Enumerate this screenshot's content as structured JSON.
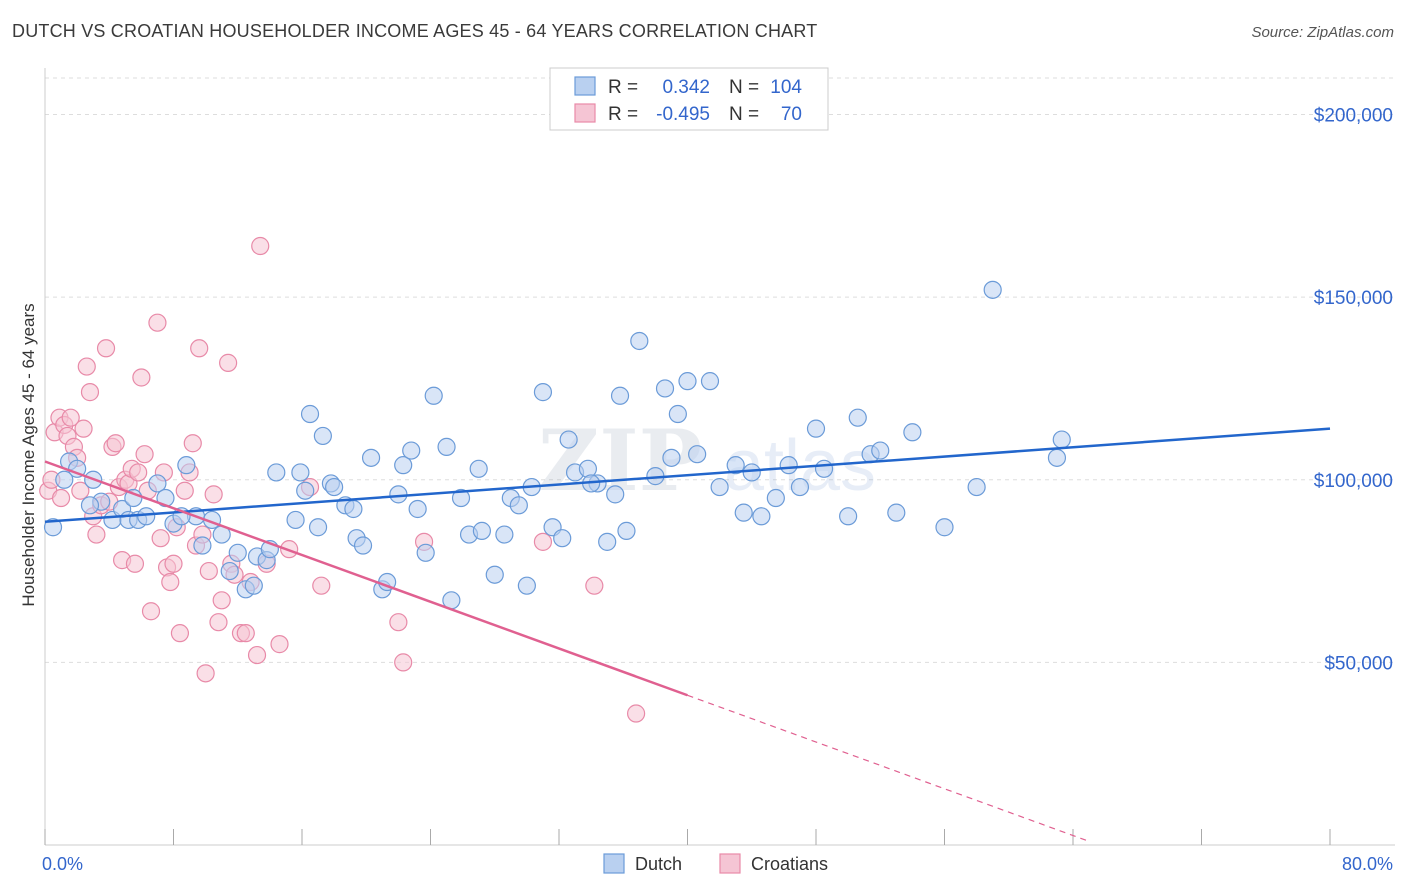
{
  "header": {
    "title": "DUTCH VS CROATIAN HOUSEHOLDER INCOME AGES 45 - 64 YEARS CORRELATION CHART",
    "source": "Source: ZipAtlas.com"
  },
  "legend_stats": {
    "dutch": {
      "r_label": "R =",
      "r_value": "0.342",
      "n_label": "N =",
      "n_value": "104"
    },
    "croatians": {
      "r_label": "R =",
      "r_value": "-0.495",
      "n_label": "N =",
      "n_value": "70"
    }
  },
  "watermark": {
    "zip": "ZIP",
    "atlas": "atlas"
  },
  "colors": {
    "dutch": "#6b9bd8",
    "dutch_fill": "#b9d0f0",
    "dutch_line": "#2266cc",
    "croatians": "#e88aa8",
    "croatians_fill": "#f5c5d4",
    "croatians_line": "#e06090",
    "axis_text": "#3366cc",
    "grid": "#dddddd"
  },
  "chart_data": {
    "type": "scatter",
    "title": "DUTCH VS CROATIAN HOUSEHOLDER INCOME AGES 45 - 64 YEARS CORRELATION CHART",
    "xlabel": "",
    "ylabel": "Householder Income Ages 45 - 64 years",
    "xlim": [
      0,
      80
    ],
    "ylim": [
      0,
      210000
    ],
    "x_tick_labels": [
      "0.0%",
      "80.0%"
    ],
    "y_ticks": [
      50000,
      100000,
      150000,
      200000
    ],
    "y_tick_labels": [
      "$50,000",
      "$100,000",
      "$150,000",
      "$200,000"
    ],
    "grid": true,
    "legend_position": "bottom-center",
    "series": [
      {
        "name": "Dutch",
        "trend": {
          "x": [
            0,
            80
          ],
          "y": [
            88500,
            114000
          ]
        },
        "points": [
          [
            0.5,
            87000
          ],
          [
            1.5,
            105000
          ],
          [
            2.0,
            103000
          ],
          [
            3.0,
            100000
          ],
          [
            3.5,
            94000
          ],
          [
            4.2,
            89000
          ],
          [
            4.8,
            92000
          ],
          [
            5.2,
            89000
          ],
          [
            5.8,
            89000
          ],
          [
            6.3,
            90000
          ],
          [
            7.0,
            99000
          ],
          [
            7.5,
            95000
          ],
          [
            8.0,
            88000
          ],
          [
            8.8,
            104000
          ],
          [
            9.4,
            90000
          ],
          [
            9.8,
            82000
          ],
          [
            10.4,
            89000
          ],
          [
            11.0,
            85000
          ],
          [
            11.5,
            75000
          ],
          [
            12.0,
            80000
          ],
          [
            12.5,
            70000
          ],
          [
            13.2,
            79000
          ],
          [
            13.8,
            78000
          ],
          [
            14.0,
            81000
          ],
          [
            14.4,
            102000
          ],
          [
            15.6,
            89000
          ],
          [
            15.9,
            102000
          ],
          [
            16.2,
            97000
          ],
          [
            16.5,
            118000
          ],
          [
            17.0,
            87000
          ],
          [
            17.3,
            112000
          ],
          [
            17.8,
            99000
          ],
          [
            18.0,
            98000
          ],
          [
            18.7,
            93000
          ],
          [
            19.2,
            92000
          ],
          [
            19.4,
            84000
          ],
          [
            19.8,
            82000
          ],
          [
            20.3,
            106000
          ],
          [
            21.0,
            70000
          ],
          [
            21.3,
            72000
          ],
          [
            22.0,
            96000
          ],
          [
            22.3,
            104000
          ],
          [
            22.8,
            108000
          ],
          [
            23.2,
            92000
          ],
          [
            23.7,
            80000
          ],
          [
            24.2,
            123000
          ],
          [
            25.0,
            109000
          ],
          [
            25.3,
            67000
          ],
          [
            25.9,
            95000
          ],
          [
            26.4,
            85000
          ],
          [
            27.0,
            103000
          ],
          [
            27.2,
            86000
          ],
          [
            28.0,
            74000
          ],
          [
            28.6,
            85000
          ],
          [
            29.0,
            95000
          ],
          [
            29.5,
            93000
          ],
          [
            30.0,
            71000
          ],
          [
            30.3,
            98000
          ],
          [
            31.0,
            124000
          ],
          [
            31.6,
            87000
          ],
          [
            32.2,
            84000
          ],
          [
            32.6,
            111000
          ],
          [
            33.0,
            102000
          ],
          [
            33.8,
            103000
          ],
          [
            34.4,
            99000
          ],
          [
            35.0,
            83000
          ],
          [
            35.5,
            96000
          ],
          [
            35.8,
            123000
          ],
          [
            36.2,
            86000
          ],
          [
            37.0,
            138000
          ],
          [
            38.0,
            101000
          ],
          [
            38.6,
            125000
          ],
          [
            39.0,
            106000
          ],
          [
            39.4,
            118000
          ],
          [
            40.0,
            127000
          ],
          [
            40.6,
            107000
          ],
          [
            41.4,
            127000
          ],
          [
            42.0,
            98000
          ],
          [
            43.0,
            104000
          ],
          [
            43.5,
            91000
          ],
          [
            44.0,
            102000
          ],
          [
            44.6,
            90000
          ],
          [
            45.5,
            95000
          ],
          [
            46.3,
            104000
          ],
          [
            47.0,
            98000
          ],
          [
            48.0,
            114000
          ],
          [
            48.5,
            103000
          ],
          [
            50.0,
            90000
          ],
          [
            50.6,
            117000
          ],
          [
            51.4,
            107000
          ],
          [
            52.0,
            108000
          ],
          [
            53.0,
            91000
          ],
          [
            54.0,
            113000
          ],
          [
            56.0,
            87000
          ],
          [
            58.0,
            98000
          ],
          [
            59.0,
            152000
          ],
          [
            63.0,
            106000
          ],
          [
            63.3,
            111000
          ],
          [
            1.2,
            100000
          ],
          [
            2.8,
            93000
          ],
          [
            5.5,
            95000
          ],
          [
            8.5,
            90000
          ],
          [
            13.0,
            71000
          ],
          [
            34.0,
            99000
          ]
        ]
      },
      {
        "name": "Croatians",
        "trend": {
          "x": [
            0,
            40
          ],
          "y": [
            105000,
            41000
          ]
        },
        "trend_dashed": {
          "x": [
            40,
            65
          ],
          "y": [
            41000,
            1000
          ]
        },
        "points": [
          [
            0.2,
            97000
          ],
          [
            0.4,
            100000
          ],
          [
            0.6,
            113000
          ],
          [
            0.9,
            117000
          ],
          [
            1.2,
            115000
          ],
          [
            1.4,
            112000
          ],
          [
            1.6,
            117000
          ],
          [
            1.8,
            109000
          ],
          [
            2.0,
            106000
          ],
          [
            2.2,
            97000
          ],
          [
            2.4,
            114000
          ],
          [
            2.6,
            131000
          ],
          [
            2.8,
            124000
          ],
          [
            3.0,
            90000
          ],
          [
            3.2,
            85000
          ],
          [
            3.5,
            93000
          ],
          [
            3.8,
            136000
          ],
          [
            4.0,
            94000
          ],
          [
            4.2,
            109000
          ],
          [
            4.4,
            110000
          ],
          [
            4.6,
            98000
          ],
          [
            4.8,
            78000
          ],
          [
            5.0,
            100000
          ],
          [
            5.2,
            99000
          ],
          [
            5.4,
            103000
          ],
          [
            5.6,
            77000
          ],
          [
            5.8,
            102000
          ],
          [
            6.0,
            128000
          ],
          [
            6.2,
            107000
          ],
          [
            6.4,
            97000
          ],
          [
            6.6,
            64000
          ],
          [
            7.0,
            143000
          ],
          [
            7.2,
            84000
          ],
          [
            7.4,
            102000
          ],
          [
            7.6,
            76000
          ],
          [
            7.8,
            72000
          ],
          [
            8.0,
            77000
          ],
          [
            8.2,
            87000
          ],
          [
            8.4,
            58000
          ],
          [
            8.7,
            97000
          ],
          [
            9.0,
            102000
          ],
          [
            9.2,
            110000
          ],
          [
            9.4,
            82000
          ],
          [
            9.6,
            136000
          ],
          [
            9.8,
            85000
          ],
          [
            10.0,
            47000
          ],
          [
            10.2,
            75000
          ],
          [
            10.5,
            96000
          ],
          [
            10.8,
            61000
          ],
          [
            11.0,
            67000
          ],
          [
            11.4,
            132000
          ],
          [
            11.6,
            77000
          ],
          [
            11.8,
            74000
          ],
          [
            12.2,
            58000
          ],
          [
            12.5,
            58000
          ],
          [
            12.8,
            72000
          ],
          [
            13.2,
            52000
          ],
          [
            13.4,
            164000
          ],
          [
            13.8,
            77000
          ],
          [
            14.6,
            55000
          ],
          [
            15.2,
            81000
          ],
          [
            16.5,
            98000
          ],
          [
            17.2,
            71000
          ],
          [
            22.0,
            61000
          ],
          [
            22.3,
            50000
          ],
          [
            23.6,
            83000
          ],
          [
            31.0,
            83000
          ],
          [
            34.2,
            71000
          ],
          [
            36.8,
            36000
          ],
          [
            1.0,
            95000
          ]
        ]
      }
    ]
  },
  "bottom_legend": {
    "dutch": "Dutch",
    "croatians": "Croatians"
  }
}
